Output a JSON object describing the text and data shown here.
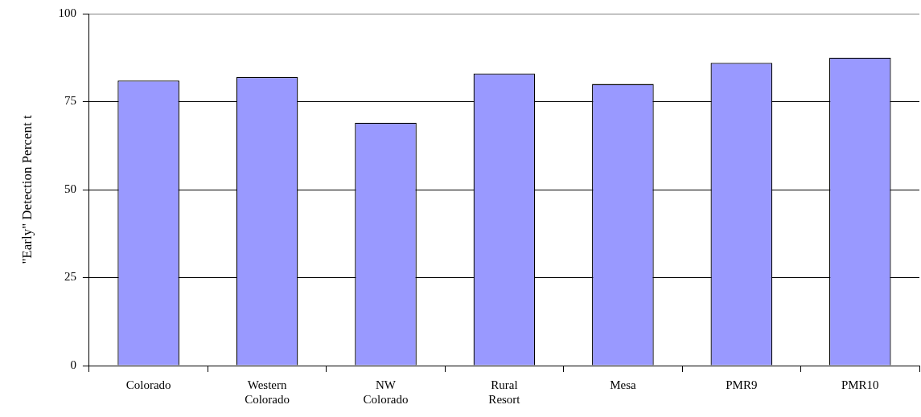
{
  "chart_data": {
    "type": "bar",
    "ylabel": "\"Early\" Detection Percent t",
    "categories": [
      "Colorado",
      "Western Colorado",
      "NW Colorado",
      "Rural Resort",
      "Mesa",
      "PMR9",
      "PMR10"
    ],
    "values": [
      81,
      82,
      69,
      83,
      80,
      86,
      87.5
    ],
    "color": "#9999ff",
    "ylim": [
      0,
      100
    ],
    "yticks": [
      0,
      25,
      50,
      75,
      100
    ],
    "grid": "y",
    "legend": false
  }
}
